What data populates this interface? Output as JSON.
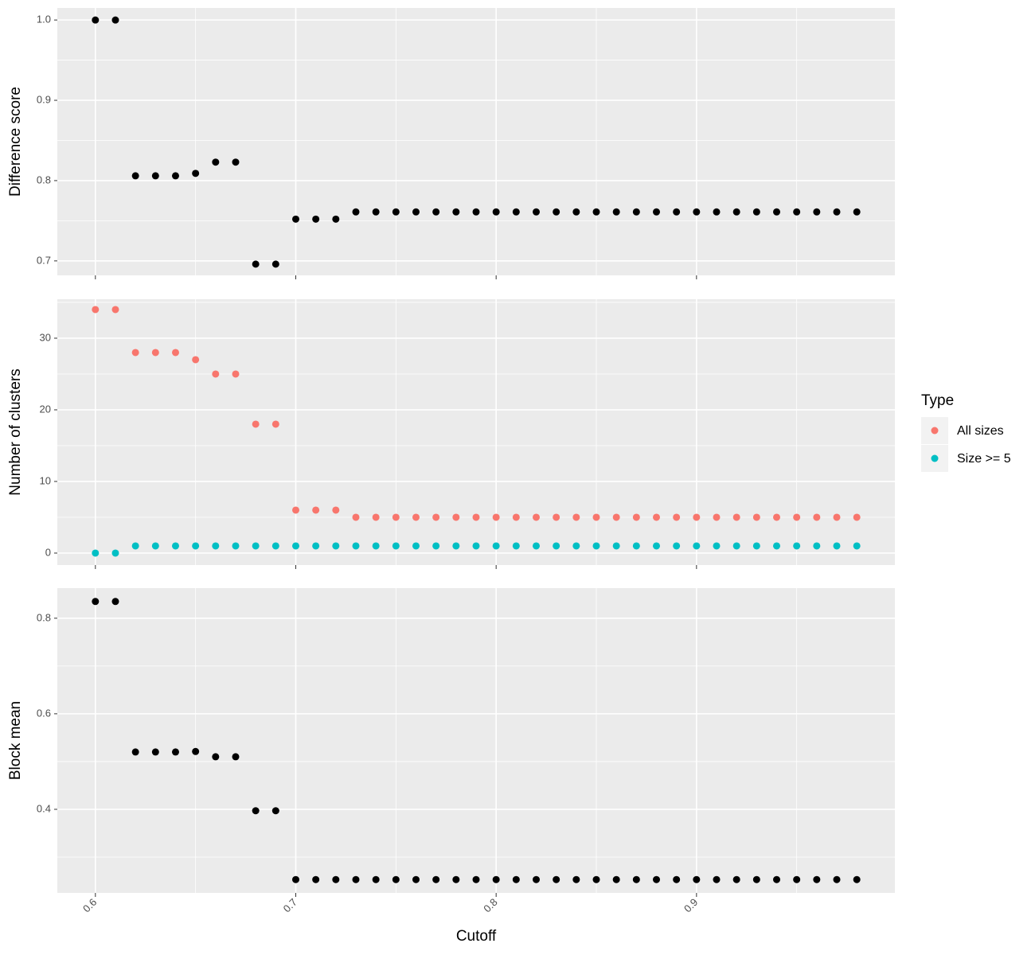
{
  "chart_data": [
    {
      "type": "scatter",
      "ylabel": "Difference score",
      "color": "#000000",
      "x": [
        0.6,
        0.61,
        0.62,
        0.63,
        0.64,
        0.65,
        0.66,
        0.67,
        0.68,
        0.69,
        0.7,
        0.71,
        0.72,
        0.73,
        0.74,
        0.75,
        0.76,
        0.77,
        0.78,
        0.79,
        0.8,
        0.81,
        0.82,
        0.83,
        0.84,
        0.85,
        0.86,
        0.87,
        0.88,
        0.89,
        0.9,
        0.91,
        0.92,
        0.93,
        0.94,
        0.95,
        0.96,
        0.97,
        0.98
      ],
      "values": [
        1.0,
        1.0,
        0.806,
        0.806,
        0.806,
        0.809,
        0.823,
        0.823,
        0.696,
        0.696,
        0.752,
        0.752,
        0.752,
        0.761,
        0.761,
        0.761,
        0.761,
        0.761,
        0.761,
        0.761,
        0.761,
        0.761,
        0.761,
        0.761,
        0.761,
        0.761,
        0.761,
        0.761,
        0.761,
        0.761,
        0.761,
        0.761,
        0.761,
        0.761,
        0.761,
        0.761,
        0.761,
        0.761,
        0.761
      ],
      "xlim": [
        0.581,
        0.999
      ],
      "xticks": [
        0.6,
        0.7,
        0.8,
        0.9
      ],
      "ylim": [
        0.682,
        1.015
      ],
      "yticks": [
        0.7,
        0.8,
        0.9,
        {
          "value": 1.0,
          "label": "1.0"
        }
      ],
      "grid": true
    },
    {
      "type": "scatter",
      "ylabel": "Number of clusters",
      "legend_title": "Type",
      "legend": "right",
      "x": [
        0.6,
        0.61,
        0.62,
        0.63,
        0.64,
        0.65,
        0.66,
        0.67,
        0.68,
        0.69,
        0.7,
        0.71,
        0.72,
        0.73,
        0.74,
        0.75,
        0.76,
        0.77,
        0.78,
        0.79,
        0.8,
        0.81,
        0.82,
        0.83,
        0.84,
        0.85,
        0.86,
        0.87,
        0.88,
        0.89,
        0.9,
        0.91,
        0.92,
        0.93,
        0.94,
        0.95,
        0.96,
        0.97,
        0.98
      ],
      "series": [
        {
          "name": "All sizes",
          "color": "#F8766D",
          "values": [
            34,
            34,
            28,
            28,
            28,
            27,
            25,
            25,
            18,
            18,
            6,
            6,
            6,
            5,
            5,
            5,
            5,
            5,
            5,
            5,
            5,
            5,
            5,
            5,
            5,
            5,
            5,
            5,
            5,
            5,
            5,
            5,
            5,
            5,
            5,
            5,
            5,
            5,
            5
          ]
        },
        {
          "name": "Size >= 5",
          "color": "#00BFC4",
          "values": [
            0,
            0,
            1,
            1,
            1,
            1,
            1,
            1,
            1,
            1,
            1,
            1,
            1,
            1,
            1,
            1,
            1,
            1,
            1,
            1,
            1,
            1,
            1,
            1,
            1,
            1,
            1,
            1,
            1,
            1,
            1,
            1,
            1,
            1,
            1,
            1,
            1,
            1,
            1
          ]
        }
      ],
      "xlim": [
        0.581,
        0.999
      ],
      "xticks": [
        0.6,
        0.7,
        0.8,
        0.9
      ],
      "ylim": [
        -1.67,
        35.44
      ],
      "yticks": [
        0,
        10,
        20,
        30
      ],
      "grid": true
    },
    {
      "type": "scatter",
      "ylabel": "Block mean",
      "xlabel": "Cutoff",
      "color": "#000000",
      "x": [
        0.6,
        0.61,
        0.62,
        0.63,
        0.64,
        0.65,
        0.66,
        0.67,
        0.68,
        0.69,
        0.7,
        0.71,
        0.72,
        0.73,
        0.74,
        0.75,
        0.76,
        0.77,
        0.78,
        0.79,
        0.8,
        0.81,
        0.82,
        0.83,
        0.84,
        0.85,
        0.86,
        0.87,
        0.88,
        0.89,
        0.9,
        0.91,
        0.92,
        0.93,
        0.94,
        0.95,
        0.96,
        0.97,
        0.98
      ],
      "values": [
        0.835,
        0.835,
        0.52,
        0.52,
        0.52,
        0.521,
        0.51,
        0.51,
        0.397,
        0.397,
        0.253,
        0.253,
        0.253,
        0.253,
        0.253,
        0.253,
        0.253,
        0.253,
        0.253,
        0.253,
        0.253,
        0.253,
        0.253,
        0.253,
        0.253,
        0.253,
        0.253,
        0.253,
        0.253,
        0.253,
        0.253,
        0.253,
        0.253,
        0.253,
        0.253,
        0.253,
        0.253,
        0.253,
        0.253
      ],
      "xlim": [
        0.581,
        0.999
      ],
      "xticks": [
        0.6,
        0.7,
        0.8,
        0.9
      ],
      "ylim": [
        0.225,
        0.863
      ],
      "yticks": [
        0.4,
        0.6,
        0.8
      ],
      "grid": true
    }
  ]
}
